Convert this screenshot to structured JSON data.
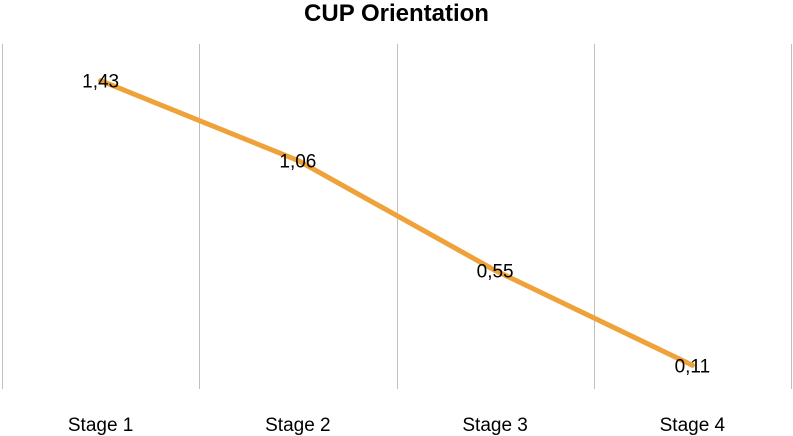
{
  "chart_data": {
    "type": "line",
    "title": "CUP Orientation",
    "xlabel": "",
    "ylabel": "",
    "categories": [
      "Stage 1",
      "Stage 2",
      "Stage 3",
      "Stage 4"
    ],
    "series": [
      {
        "values": [
          1.43,
          1.06,
          0.55,
          0.11
        ],
        "data_labels": [
          "1,43",
          "1,06",
          "0,55",
          "0,11"
        ],
        "color": "#F0A23A"
      }
    ],
    "ylim": [
      0,
      1.6
    ],
    "grid": "vertical",
    "legend": "none"
  }
}
